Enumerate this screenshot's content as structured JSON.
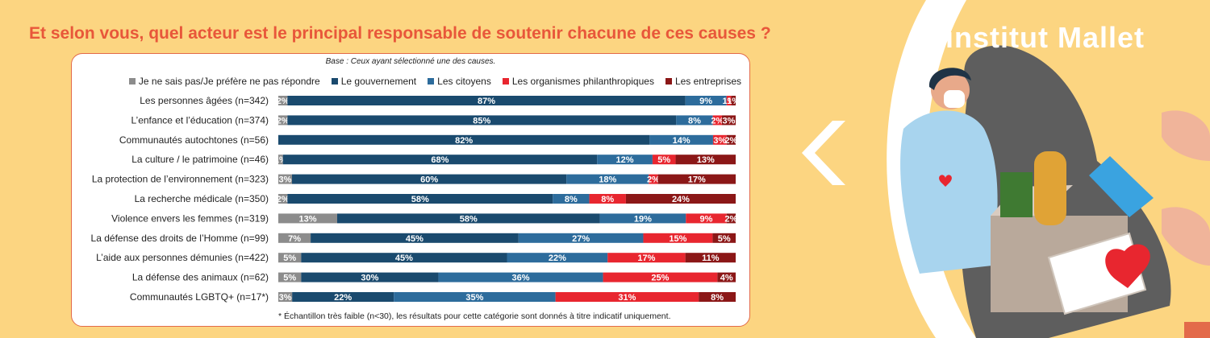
{
  "page": {
    "title": "Et selon vous, quel acteur est le principal responsable de soutenir chacune de ces causes ?",
    "brand": "institut Mallet"
  },
  "chart_data": {
    "type": "bar",
    "orientation": "horizontal",
    "stacked": "percent",
    "subtitle": "Base : Ceux ayant sélectionné une des causes.",
    "footnote": "* Échantillon très faible (n<30), les résultats pour cette catégorie sont donnés à titre indicatif uniquement.",
    "legend_position": "top",
    "categories": [
      "Les personnes âgées (n=342)",
      "L’enfance et l’éducation (n=374)",
      "Communautés autochtones (n=56)",
      "La culture / le patrimoine (n=46)",
      "La protection de l’environnement (n=323)",
      "La recherche médicale (n=350)",
      "Violence envers les femmes (n=319)",
      "La défense des droits de l’Homme (n=99)",
      "L’aide aux personnes démunies (n=422)",
      "La défense des animaux (n=62)",
      "Communautés LGBTQ+ (n=17*)"
    ],
    "series": [
      {
        "name": "Je ne sais pas/Je préfère ne pas répondre",
        "color": "#8c8c8c",
        "values": [
          2,
          2,
          null,
          1,
          3,
          2,
          13,
          7,
          5,
          5,
          3
        ]
      },
      {
        "name": "Le gouvernement",
        "color": "#1a4a6e",
        "values": [
          87,
          85,
          82,
          68,
          60,
          58,
          58,
          45,
          45,
          30,
          22
        ]
      },
      {
        "name": "Les citoyens",
        "color": "#2d6c9c",
        "values": [
          9,
          8,
          14,
          12,
          18,
          8,
          19,
          27,
          22,
          36,
          35
        ]
      },
      {
        "name": "Les organismes philanthropiques",
        "color": "#e8262f",
        "values": [
          1,
          2,
          3,
          5,
          2,
          8,
          9,
          15,
          17,
          25,
          31
        ]
      },
      {
        "name": "Les entreprises",
        "color": "#8b1717",
        "values": [
          1,
          3,
          2,
          13,
          17,
          24,
          2,
          5,
          11,
          4,
          8
        ]
      }
    ],
    "xlim": [
      0,
      100
    ]
  }
}
